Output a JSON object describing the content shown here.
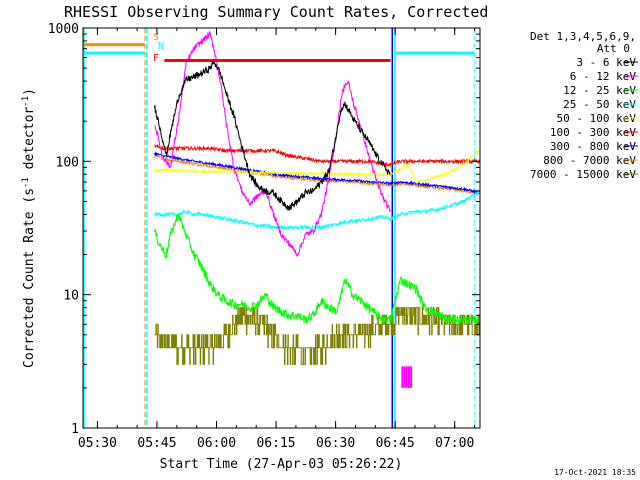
{
  "chart_data": {
    "type": "line",
    "title": "RHESSI Observing Summary Count Rates, Corrected",
    "xlabel": "Start Time (27-Apr-03 05:26:22)",
    "ylabel_parts": [
      "Corrected Count Rate (s",
      "-1",
      " detector",
      "-1",
      ")"
    ],
    "yscale": "log",
    "ylim": [
      1,
      1000
    ],
    "xlim_minutes": [
      0,
      100
    ],
    "x_ticks": [
      {
        "m": 3.63,
        "label": "05:30"
      },
      {
        "m": 18.63,
        "label": "05:45"
      },
      {
        "m": 33.63,
        "label": "06:00"
      },
      {
        "m": 48.63,
        "label": "06:15"
      },
      {
        "m": 63.63,
        "label": "06:30"
      },
      {
        "m": 78.63,
        "label": "06:45"
      },
      {
        "m": 93.63,
        "label": "07:00"
      }
    ],
    "y_ticks": [
      {
        "v": 1,
        "label": "1"
      },
      {
        "v": 10,
        "label": "10"
      },
      {
        "v": 100,
        "label": "100"
      },
      {
        "v": 1000,
        "label": "1000"
      }
    ],
    "legend": {
      "header1": "Det 1,3,4,5,6,9,",
      "header2": "Att 0",
      "placement": "right",
      "entries": [
        {
          "label": "3 - 6 keV",
          "color": "#000000"
        },
        {
          "label": "6 - 12 keV",
          "color": "#ff00ff"
        },
        {
          "label": "12 - 25 keV",
          "color": "#00ff00"
        },
        {
          "label": "25 - 50 keV",
          "color": "#00ffff"
        },
        {
          "label": "50 - 100 keV",
          "color": "#ffff00"
        },
        {
          "label": "100 - 300 keV",
          "color": "#ff0000"
        },
        {
          "label": "300 - 800 keV",
          "color": "#0000ff"
        },
        {
          "label": "800 - 7000 keV",
          "color": "#ff8c00"
        },
        {
          "label": "7000 - 15000 keV",
          "color": "#808000"
        }
      ]
    },
    "flags": [
      {
        "letter": "S",
        "color": "#ff8c00",
        "x_start": 0,
        "x_end": 15.5,
        "y": 750
      },
      {
        "letter": "N",
        "color": "#00ffff",
        "x_start": 0,
        "x_end": 15.5,
        "y": 650
      },
      {
        "letter": "F",
        "color": "#ff0000",
        "x_start": 20.5,
        "x_end": 77.5,
        "y": 570
      }
    ],
    "saa_segments": [
      {
        "color": "#00ffff",
        "x_start": 78.8,
        "x_end": 98.5,
        "y": 650
      }
    ],
    "vertical_lines": [
      {
        "x": 0,
        "color": "#00ffff",
        "style": "solid"
      },
      {
        "x": 15.6,
        "color": "#ff8c00",
        "style": "dashed"
      },
      {
        "x": 16.0,
        "color": "#00ffff",
        "style": "dashed"
      },
      {
        "x": 77.9,
        "color": "#0000ff",
        "style": "solid"
      },
      {
        "x": 78.6,
        "color": "#00ffff",
        "style": "solid"
      },
      {
        "x": 98.7,
        "color": "#00ffff",
        "style": "dashed"
      }
    ],
    "series": [
      {
        "name": "3 - 6 keV",
        "color": "#000000",
        "noise": 0.06,
        "x": [
          18,
          19,
          20,
          21,
          22,
          24,
          26,
          28,
          30,
          32,
          33,
          34,
          35,
          36,
          38,
          40,
          42,
          44,
          46,
          48,
          50,
          52,
          54,
          56,
          58,
          60,
          62,
          64,
          65,
          66,
          67,
          68,
          70,
          72,
          74,
          76,
          77.5
        ],
        "y": [
          260,
          200,
          150,
          110,
          160,
          300,
          410,
          430,
          460,
          500,
          560,
          500,
          420,
          330,
          220,
          130,
          80,
          65,
          60,
          58,
          50,
          45,
          50,
          58,
          60,
          70,
          85,
          170,
          250,
          270,
          240,
          210,
          170,
          140,
          110,
          90,
          80
        ]
      },
      {
        "name": "6 - 12 keV",
        "color": "#ff00ff",
        "noise": 0.05,
        "x": [
          18,
          19,
          20,
          22,
          24,
          26,
          28,
          30,
          32,
          33,
          34,
          35,
          36,
          38,
          40,
          42,
          44,
          46,
          48,
          50,
          52,
          54,
          56,
          58,
          60,
          62,
          64,
          65,
          66,
          67,
          68,
          70,
          72,
          74,
          76,
          77.5
        ],
        "y": [
          190,
          150,
          110,
          90,
          200,
          550,
          700,
          800,
          900,
          700,
          500,
          330,
          200,
          90,
          60,
          48,
          55,
          60,
          40,
          28,
          24,
          20,
          28,
          30,
          40,
          75,
          170,
          300,
          380,
          380,
          280,
          180,
          110,
          70,
          50,
          42
        ]
      },
      {
        "name": "12 - 25 keV",
        "color": "#00ff00",
        "noise": 0.08,
        "x": [
          18,
          19,
          20,
          21,
          22,
          24,
          26,
          28,
          30,
          32,
          34,
          36,
          38,
          40,
          42,
          44,
          46,
          48,
          50,
          52,
          54,
          56,
          58,
          60,
          62,
          64,
          66,
          68,
          70,
          72,
          74,
          76,
          77.5,
          80,
          82,
          84,
          86,
          88,
          90,
          92,
          94,
          96,
          98,
          100
        ],
        "y": [
          30,
          25,
          22,
          20,
          28,
          40,
          28,
          20,
          16,
          12,
          10,
          9,
          8.5,
          8.5,
          8,
          8.5,
          10,
          8,
          7.5,
          7,
          7,
          6.5,
          7,
          9,
          8,
          7.5,
          13,
          10,
          9,
          8,
          7,
          6.5,
          6.5,
          13,
          12,
          11,
          8,
          7.5,
          7,
          6.5,
          6.5,
          6.5,
          6.5,
          6.5
        ]
      },
      {
        "name": "25 - 50 keV",
        "color": "#00ffff",
        "noise": 0.03,
        "x": [
          18,
          20,
          22,
          24,
          26,
          28,
          30,
          32,
          34,
          36,
          38,
          40,
          42,
          44,
          46,
          48,
          50,
          52,
          54,
          56,
          58,
          60,
          62,
          64,
          66,
          68,
          70,
          72,
          74,
          76,
          77.5,
          80,
          82,
          84,
          86,
          88,
          90,
          92,
          94,
          96,
          98,
          100
        ],
        "y": [
          40,
          40,
          40,
          40,
          42,
          40,
          40,
          39,
          38,
          37,
          36,
          35,
          34,
          33,
          33,
          32,
          32,
          32,
          32,
          32,
          32,
          32,
          33,
          34,
          35,
          36,
          36,
          37,
          38,
          38,
          37,
          40,
          41,
          42,
          42,
          43,
          44,
          46,
          48,
          50,
          55,
          60
        ]
      },
      {
        "name": "50 - 100 keV",
        "color": "#ffff00",
        "noise": 0.02,
        "x": [
          18,
          20,
          25,
          30,
          35,
          40,
          45,
          50,
          55,
          60,
          65,
          70,
          75,
          77.5,
          80,
          82,
          84,
          86,
          88,
          90,
          92,
          94,
          96,
          98,
          100
        ],
        "y": [
          85,
          86,
          85,
          84,
          84,
          83,
          82,
          82,
          81,
          81,
          80,
          80,
          79,
          80,
          88,
          95,
          70,
          72,
          75,
          78,
          82,
          88,
          95,
          110,
          120
        ]
      },
      {
        "name": "100 - 300 keV",
        "color": "#ff0000",
        "noise": 0.03,
        "x": [
          18,
          20,
          24,
          28,
          32,
          36,
          40,
          44,
          48,
          52,
          56,
          60,
          64,
          68,
          72,
          76,
          77.5,
          80,
          84,
          88,
          92,
          96,
          100
        ],
        "y": [
          130,
          125,
          125,
          125,
          125,
          120,
          120,
          120,
          120,
          110,
          105,
          100,
          100,
          100,
          100,
          95,
          95,
          100,
          100,
          100,
          100,
          100,
          100
        ]
      },
      {
        "name": "300 - 800 keV",
        "color": "#0000ff",
        "noise": 0.02,
        "x": [
          18,
          20,
          24,
          28,
          32,
          36,
          40,
          44,
          48,
          52,
          56,
          60,
          64,
          68,
          72,
          76,
          77.5,
          80,
          84,
          88,
          92,
          96,
          100
        ],
        "y": [
          115,
          110,
          105,
          100,
          96,
          92,
          88,
          84,
          80,
          78,
          76,
          74,
          73,
          72,
          70,
          69,
          68,
          70,
          68,
          66,
          64,
          62,
          58
        ]
      },
      {
        "name": "800 - 7000 keV",
        "color": "#ff8c00",
        "noise": 0.02,
        "x": [
          18,
          20,
          24,
          28,
          32,
          36,
          40,
          44,
          48,
          52,
          56,
          60,
          64,
          68,
          72,
          76,
          77.5,
          80,
          84,
          88,
          92,
          96,
          100
        ],
        "y": [
          110,
          105,
          100,
          96,
          92,
          88,
          84,
          81,
          78,
          75,
          73,
          72,
          71,
          70,
          68,
          67,
          66,
          68,
          66,
          64,
          62,
          60,
          57
        ]
      },
      {
        "name": "7000 - 15000 keV",
        "color": "#808000",
        "noise": 0.22,
        "x": [
          18,
          20,
          24,
          28,
          32,
          36,
          38,
          40,
          44,
          48,
          52,
          56,
          60,
          64,
          68,
          72,
          76,
          77.5,
          80,
          84,
          88,
          92,
          96,
          100
        ],
        "y": [
          5,
          4.5,
          4,
          4,
          4,
          5,
          6,
          7,
          6.5,
          5,
          4,
          3.5,
          4,
          5,
          5,
          5.5,
          6,
          6,
          7.5,
          7,
          6.5,
          6,
          6,
          5.5
        ]
      }
    ],
    "magenta_blocks": {
      "x": [
        80.2,
        82.6
      ],
      "y": [
        2.0,
        2.9
      ],
      "color": "#ff00ff"
    },
    "grid": false
  },
  "timestamp": "17-Oct-2021 18:35"
}
